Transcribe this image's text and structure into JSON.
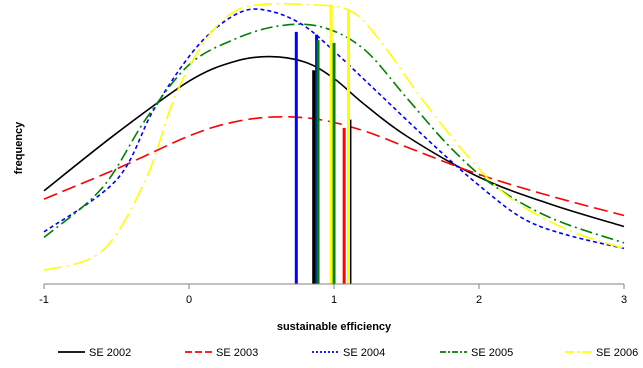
{
  "chart_data": {
    "type": "line",
    "title": "",
    "xlabel": "sustainable efficiency",
    "ylabel": "frequency",
    "xlim": [
      -1,
      3
    ],
    "ylim": [
      0,
      1
    ],
    "x_ticks": [
      -1,
      0,
      1,
      2,
      3
    ],
    "grid": false,
    "legend_position": "bottom",
    "series": [
      {
        "name": "SE 2002",
        "color": "#000000",
        "style": "solid",
        "mean_marker": 1.12,
        "points": [
          [
            -1,
            0.34
          ],
          [
            -0.5,
            0.55
          ],
          [
            0,
            0.74
          ],
          [
            0.3,
            0.81
          ],
          [
            0.55,
            0.83
          ],
          [
            0.8,
            0.81
          ],
          [
            1.0,
            0.75
          ],
          [
            1.2,
            0.66
          ],
          [
            1.5,
            0.54
          ],
          [
            2,
            0.39
          ],
          [
            2.5,
            0.29
          ],
          [
            3,
            0.21
          ]
        ]
      },
      {
        "name": "SE 2003",
        "color": "#ff0000",
        "style": "dashed",
        "mean_marker": 1.06,
        "points": [
          [
            -1,
            0.31
          ],
          [
            -0.5,
            0.42
          ],
          [
            0,
            0.54
          ],
          [
            0.3,
            0.59
          ],
          [
            0.6,
            0.61
          ],
          [
            0.9,
            0.6
          ],
          [
            1.2,
            0.56
          ],
          [
            1.5,
            0.5
          ],
          [
            2,
            0.4
          ],
          [
            2.5,
            0.32
          ],
          [
            3,
            0.25
          ]
        ]
      },
      {
        "name": "SE 2004",
        "color": "#0000ff",
        "style": "dotted",
        "mean_marker": 0.74,
        "points": [
          [
            -1,
            0.19
          ],
          [
            -0.5,
            0.38
          ],
          [
            -0.25,
            0.63
          ],
          [
            0,
            0.83
          ],
          [
            0.2,
            0.94
          ],
          [
            0.4,
            1.0
          ],
          [
            0.6,
            0.99
          ],
          [
            0.8,
            0.94
          ],
          [
            1.0,
            0.85
          ],
          [
            1.3,
            0.7
          ],
          [
            1.7,
            0.5
          ],
          [
            2,
            0.36
          ],
          [
            2.3,
            0.24
          ],
          [
            2.6,
            0.18
          ],
          [
            3,
            0.13
          ]
        ]
      },
      {
        "name": "SE 2005",
        "color": "#008000",
        "style": "dash-dot",
        "mean_marker": 0.88,
        "points": [
          [
            -1,
            0.17
          ],
          [
            -0.6,
            0.35
          ],
          [
            -0.3,
            0.6
          ],
          [
            0,
            0.8
          ],
          [
            0.3,
            0.89
          ],
          [
            0.6,
            0.94
          ],
          [
            0.9,
            0.94
          ],
          [
            1.2,
            0.86
          ],
          [
            1.5,
            0.68
          ],
          [
            1.8,
            0.5
          ],
          [
            2.1,
            0.36
          ],
          [
            2.5,
            0.24
          ],
          [
            3,
            0.15
          ]
        ]
      },
      {
        "name": "SE 2006",
        "color": "#ffff00",
        "style": "long-dash-dot",
        "mean_marker": 1.1,
        "points": [
          [
            -1,
            0.05
          ],
          [
            -0.6,
            0.12
          ],
          [
            -0.3,
            0.38
          ],
          [
            -0.1,
            0.68
          ],
          [
            0.1,
            0.88
          ],
          [
            0.3,
            0.99
          ],
          [
            0.5,
            1.02
          ],
          [
            0.8,
            1.02
          ],
          [
            1.1,
            1.0
          ],
          [
            1.3,
            0.9
          ],
          [
            1.6,
            0.68
          ],
          [
            1.9,
            0.48
          ],
          [
            2.2,
            0.32
          ],
          [
            2.6,
            0.2
          ],
          [
            3,
            0.13
          ]
        ]
      }
    ],
    "markers": [
      {
        "color": "#0000ff",
        "x": 0.74,
        "y": 0.92
      },
      {
        "color": "#0000ff",
        "x": 0.88,
        "y": 0.91
      },
      {
        "color": "#000000",
        "x": 0.86,
        "y": 0.78
      },
      {
        "color": "#000000",
        "x": 1.11,
        "y": 0.6
      },
      {
        "color": "#008000",
        "x": 0.89,
        "y": 0.89
      },
      {
        "color": "#008000",
        "x": 1.0,
        "y": 0.88
      },
      {
        "color": "#ff0000",
        "x": 1.07,
        "y": 0.57
      },
      {
        "color": "#ffff00",
        "x": 0.98,
        "y": 1.02
      },
      {
        "color": "#ffff00",
        "x": 1.1,
        "y": 1.0
      }
    ]
  }
}
